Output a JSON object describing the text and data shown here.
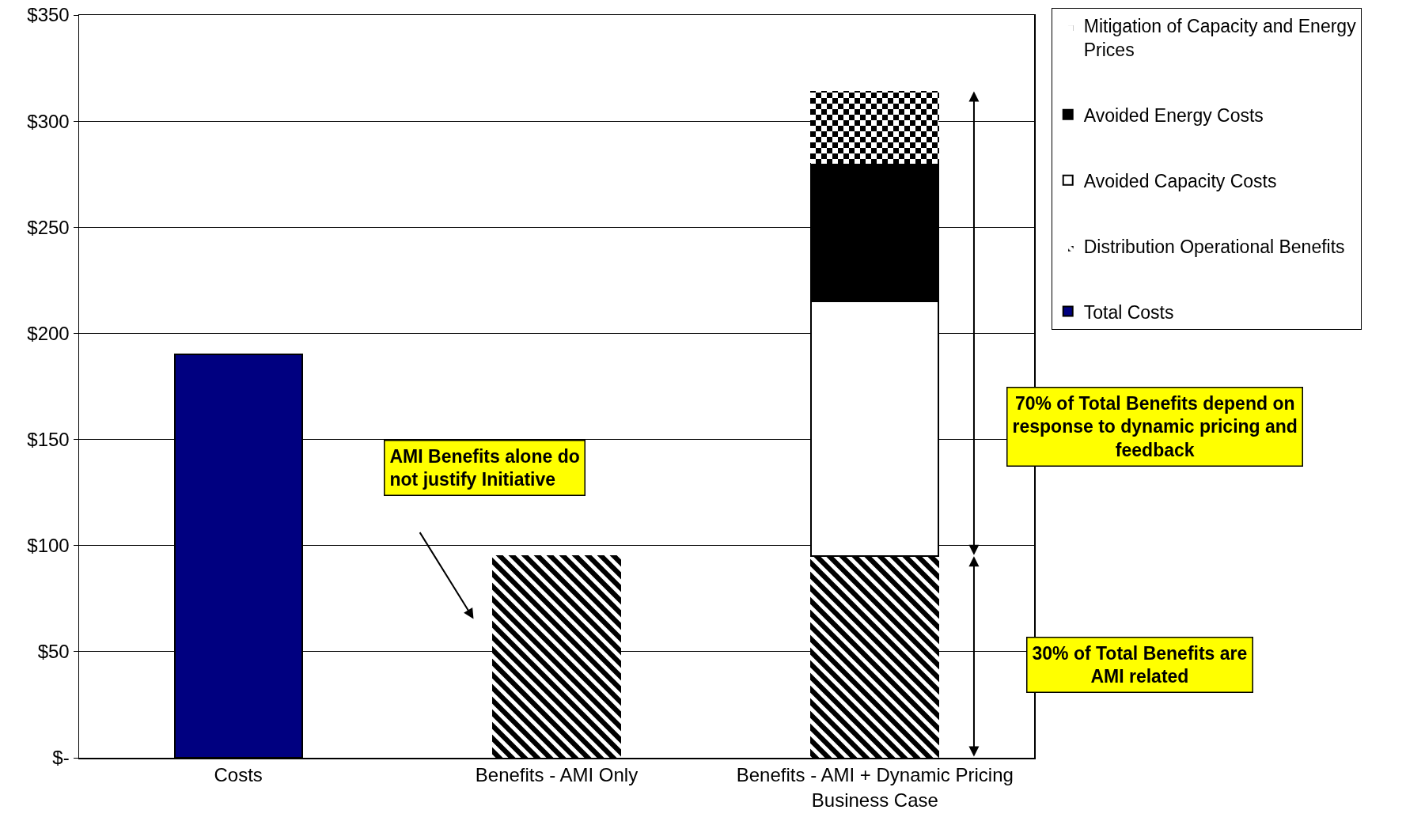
{
  "chart_data": {
    "type": "bar",
    "stacked": true,
    "categories": [
      "Costs",
      "Benefits - AMI Only",
      "Benefits - AMI + Dynamic Pricing Business Case"
    ],
    "series": [
      {
        "name": "Total Costs",
        "color": "#000080",
        "values": [
          190,
          null,
          null
        ]
      },
      {
        "name": "Distribution Operational Benefits",
        "color": "#000000",
        "values": [
          null,
          95,
          95
        ]
      },
      {
        "name": "Avoided Capacity Costs",
        "color": "#ffffff",
        "values": [
          null,
          null,
          120
        ]
      },
      {
        "name": "Avoided Energy Costs",
        "color": "#000000",
        "values": [
          null,
          null,
          65
        ]
      },
      {
        "name": "Mitigation of Capacity and Energy Prices",
        "color": "#000000",
        "values": [
          null,
          null,
          34
        ]
      }
    ],
    "ylim": [
      0,
      350
    ],
    "yticks": [
      {
        "value": 0,
        "label": "$-"
      },
      {
        "value": 50,
        "label": "$50"
      },
      {
        "value": 100,
        "label": "$100"
      },
      {
        "value": 150,
        "label": "$150"
      },
      {
        "value": 200,
        "label": "$200"
      },
      {
        "value": 250,
        "label": "$250"
      },
      {
        "value": 300,
        "label": "$300"
      },
      {
        "value": 350,
        "label": "$350"
      }
    ],
    "grid": "y",
    "legend": "top right",
    "annotations": [
      "AMI Benefits alone do not justify Initiative",
      "70% of Total Benefits depend on response to dynamic pricing and feedback",
      "30% of Total Benefits are AMI related"
    ]
  }
}
